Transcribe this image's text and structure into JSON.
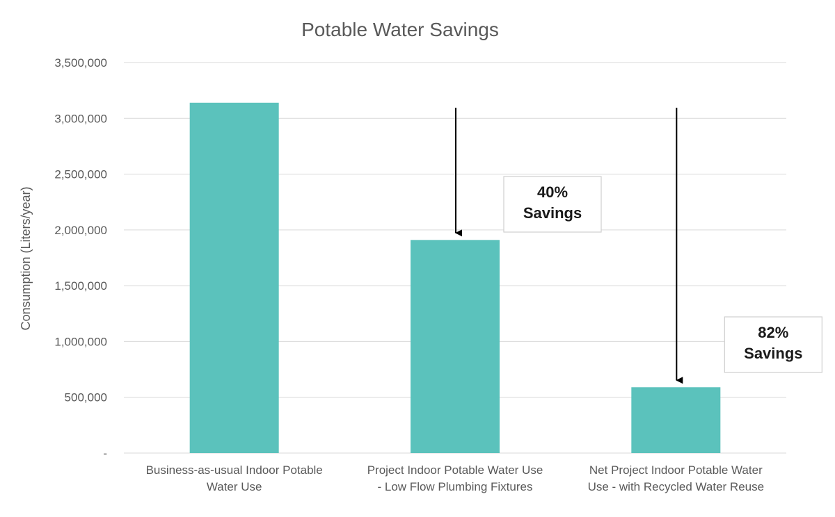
{
  "chart_data": {
    "type": "bar",
    "title": "Potable Water Savings",
    "ylabel": "Consumption (Liters/year)",
    "xlabel": "",
    "ylim": [
      0,
      3500000
    ],
    "y_ticks": [
      0,
      500000,
      1000000,
      1500000,
      2000000,
      2500000,
      3000000,
      3500000
    ],
    "y_tick_labels": [
      "-",
      "500,000",
      "1,000,000",
      "1,500,000",
      "2,000,000",
      "2,500,000",
      "3,000,000",
      "3,500,000"
    ],
    "categories": [
      [
        "Business-as-usual Indoor Potable",
        "Water Use"
      ],
      [
        "Project Indoor Potable Water Use",
        "- Low Flow Plumbing Fixtures"
      ],
      [
        "Net Project Indoor Potable Water",
        "Use - with Recycled Water Reuse"
      ]
    ],
    "values": [
      3140000,
      1910000,
      590000
    ],
    "bar_color": "#5bc2bc",
    "grid": true,
    "legend": "none",
    "annotations": [
      {
        "lines": [
          "40%",
          "Savings"
        ],
        "bar_index": 1
      },
      {
        "lines": [
          "82%",
          "Savings"
        ],
        "bar_index": 2
      }
    ]
  }
}
